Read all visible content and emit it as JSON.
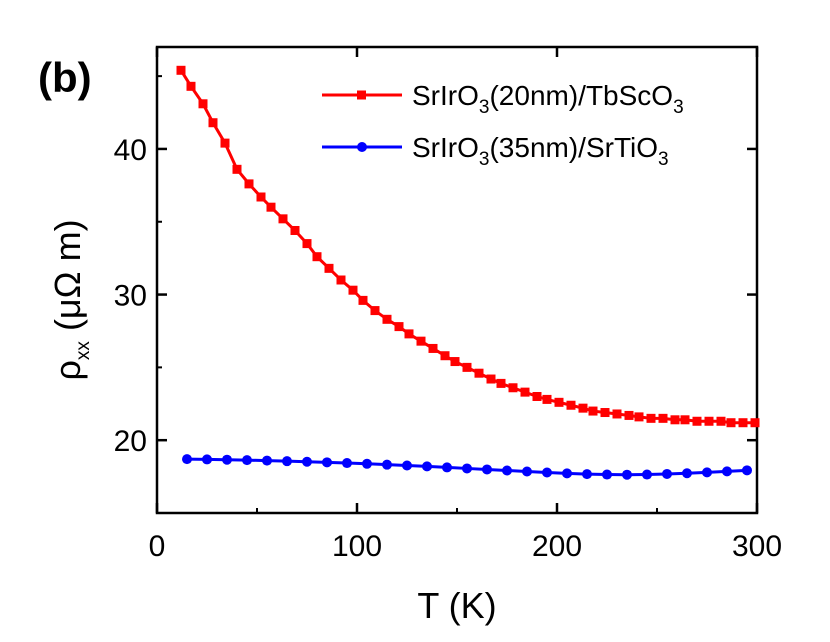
{
  "chart_data": {
    "type": "line",
    "panel_label": "(b)",
    "xlabel": "T (K)",
    "ylabel": {
      "main": "ρ",
      "sub": "xx",
      "unit": " (μΩ m)"
    },
    "xlim": [
      0,
      300
    ],
    "ylim": [
      15,
      47
    ],
    "xticks": [
      0,
      100,
      200,
      300
    ],
    "yticks": [
      20,
      30,
      40
    ],
    "grid": false,
    "legend_position": "top-right",
    "series": [
      {
        "name": "SrIrO3(20nm)/TbScO3",
        "legend_parts": [
          "SrIrO",
          "3",
          "(20nm)/TbScO",
          "3"
        ],
        "color": "#ff0000",
        "marker": "square",
        "x": [
          12,
          17,
          23,
          28,
          34,
          40,
          46,
          52,
          57,
          63,
          69,
          75,
          80,
          86,
          92,
          98,
          103,
          109,
          115,
          121,
          126,
          132,
          138,
          144,
          149,
          155,
          161,
          167,
          172,
          178,
          184,
          190,
          195,
          201,
          207,
          213,
          218,
          224,
          230,
          236,
          241,
          247,
          253,
          259,
          264,
          270,
          276,
          282,
          287,
          293,
          299
        ],
        "y": [
          45.4,
          44.3,
          43.1,
          41.8,
          40.4,
          38.6,
          37.6,
          36.7,
          36.0,
          35.2,
          34.4,
          33.5,
          32.6,
          31.8,
          31.0,
          30.3,
          29.6,
          28.9,
          28.3,
          27.8,
          27.3,
          26.8,
          26.3,
          25.8,
          25.4,
          25.0,
          24.6,
          24.2,
          23.9,
          23.6,
          23.3,
          23.0,
          22.8,
          22.6,
          22.4,
          22.2,
          22.0,
          21.9,
          21.8,
          21.7,
          21.6,
          21.5,
          21.5,
          21.4,
          21.4,
          21.3,
          21.3,
          21.3,
          21.2,
          21.2,
          21.2
        ]
      },
      {
        "name": "SrIrO3(35nm)/SrTiO3",
        "legend_parts": [
          "SrIrO",
          "3",
          "(35nm)/SrTiO",
          "3"
        ],
        "color": "#0000ff",
        "marker": "circle",
        "x": [
          15,
          25,
          35,
          45,
          55,
          65,
          75,
          85,
          95,
          105,
          115,
          125,
          135,
          145,
          155,
          165,
          175,
          185,
          195,
          205,
          215,
          225,
          235,
          245,
          255,
          265,
          275,
          285,
          295
        ],
        "y": [
          18.7,
          18.68,
          18.66,
          18.63,
          18.6,
          18.56,
          18.52,
          18.48,
          18.43,
          18.38,
          18.32,
          18.26,
          18.2,
          18.13,
          18.06,
          17.99,
          17.92,
          17.85,
          17.78,
          17.72,
          17.67,
          17.64,
          17.63,
          17.64,
          17.68,
          17.73,
          17.79,
          17.86,
          17.93
        ]
      }
    ]
  }
}
